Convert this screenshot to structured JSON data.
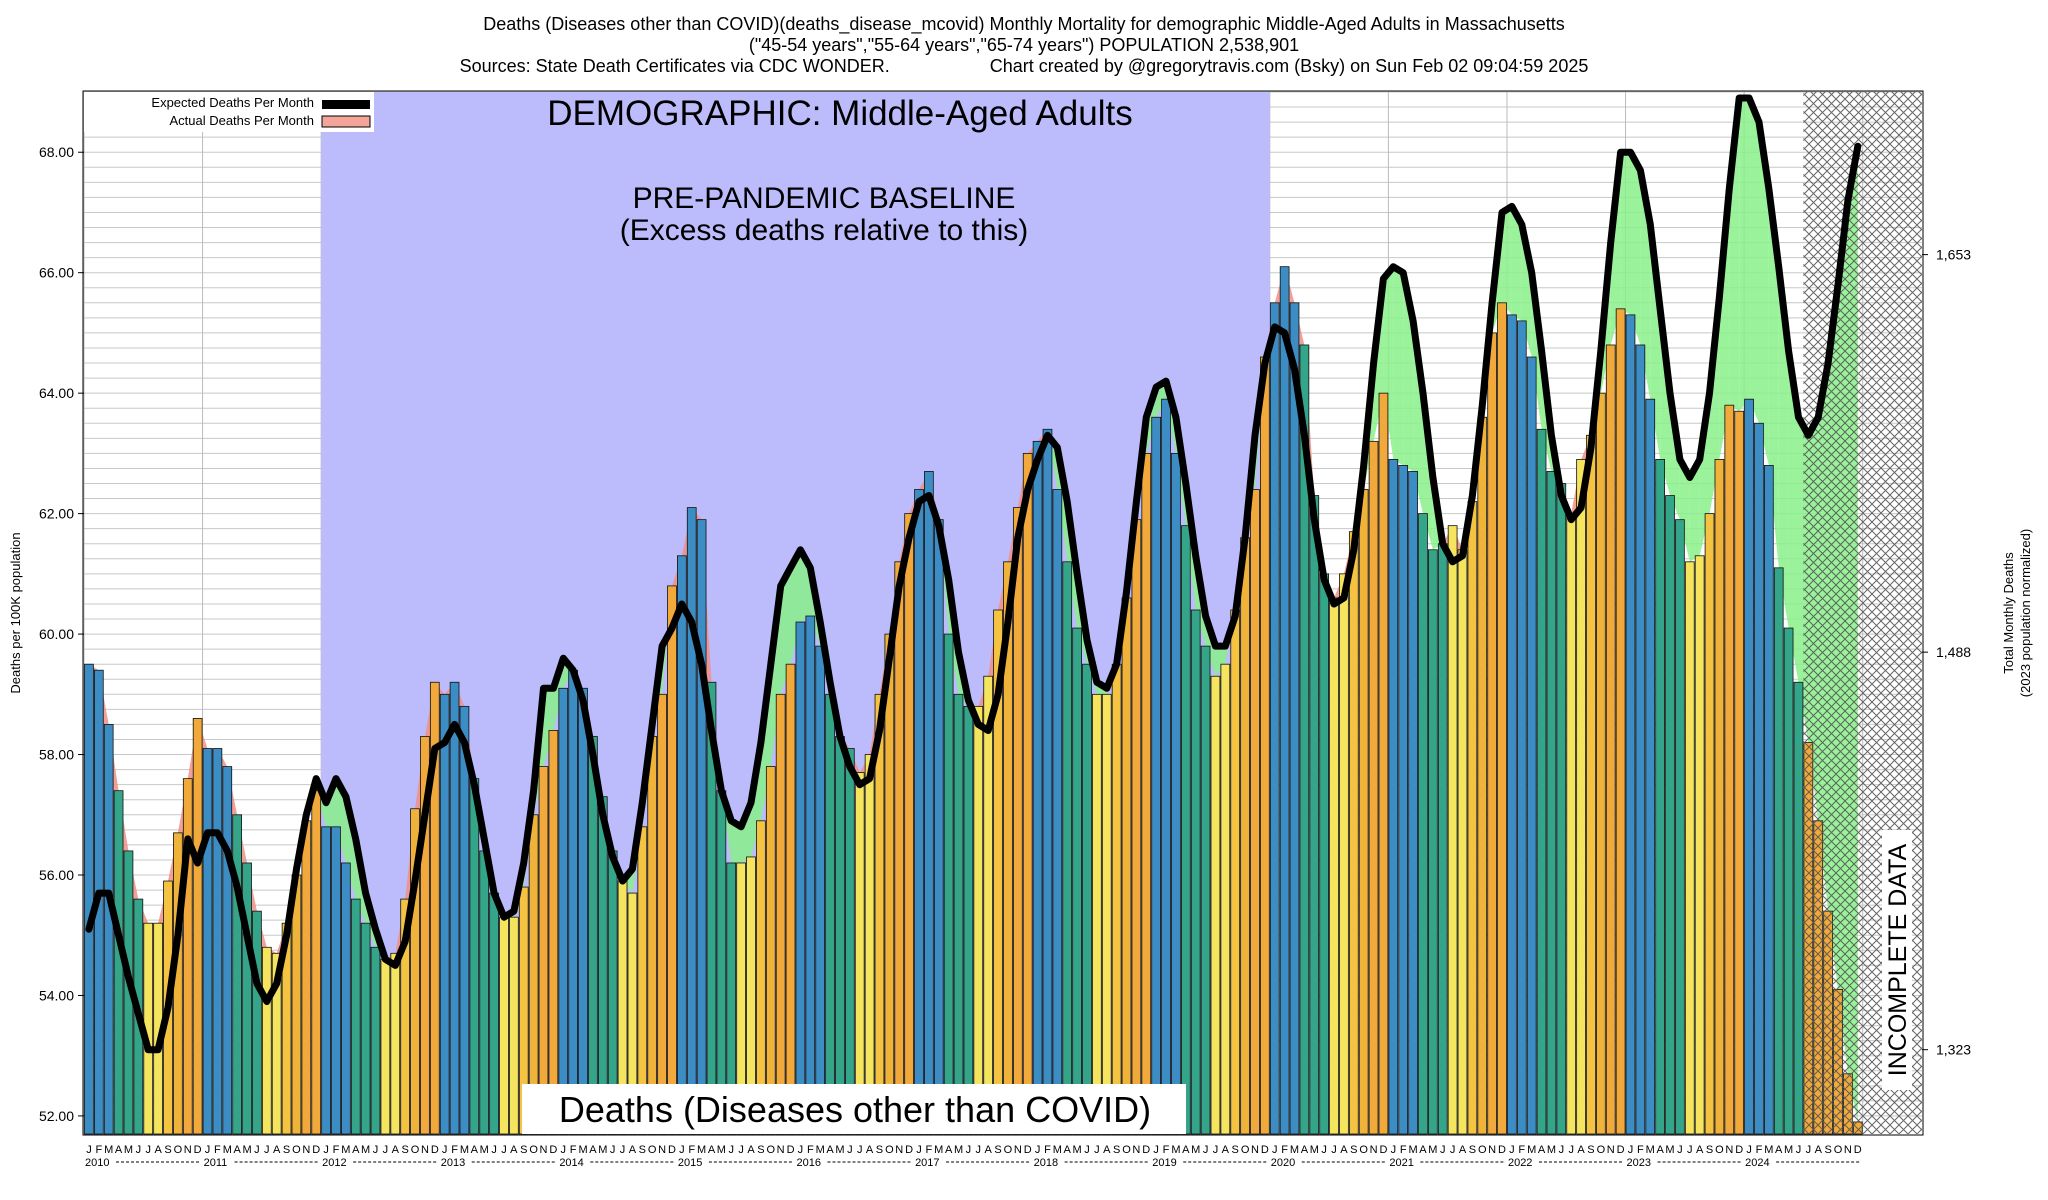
{
  "header": {
    "title": "Deaths (Diseases other than COVID)(deaths_disease_mcovid) Monthly Mortality for demographic Middle-Aged Adults in Massachusetts",
    "subtitle": "(\"45-54 years\",\"55-64 years\",\"65-74 years\") POPULATION 2,538,901",
    "sources": "Sources: State Death Certificates via CDC WONDER.",
    "credit": "Chart created by @gregorytravis.com (Bsky) on Sun Feb 02 09:04:59 2025"
  },
  "chart_data": {
    "type": "bar",
    "title": "DEMOGRAPHIC: Middle-Aged Adults",
    "bottom_label": "Deaths (Diseases other than COVID)",
    "ylabel": "Deaths per 100K population",
    "ylabel_right": [
      "Total Monthly Deaths",
      "(2023 population normalized)"
    ],
    "ylim": [
      51.7,
      69.0
    ],
    "yticks": [
      "52.00",
      "54.00",
      "56.00",
      "58.00",
      "60.00",
      "62.00",
      "64.00",
      "66.00",
      "68.00"
    ],
    "yticks_right": [
      {
        "label": "1,323",
        "value": 53.1
      },
      {
        "label": "1,488",
        "value": 59.7
      },
      {
        "label": "1,653",
        "value": 66.3
      }
    ],
    "month_letters": [
      "J",
      "F",
      "M",
      "A",
      "M",
      "J",
      "J",
      "A",
      "S",
      "O",
      "N",
      "D"
    ],
    "years": [
      "2010",
      "2011",
      "2012",
      "2013",
      "2014",
      "2015",
      "2016",
      "2017",
      "2018",
      "2019",
      "2020",
      "2021",
      "2022",
      "2023",
      "2024"
    ],
    "legend": [
      {
        "name": "Expected Deaths Per Month",
        "color": "#000000"
      },
      {
        "name": "Actual Deaths Per Month",
        "color": "#f4a59a"
      }
    ],
    "baseline": {
      "label_line1": "PRE-PANDEMIC BASELINE",
      "label_line2": "(Excess deaths relative to this)",
      "start_year": 2012,
      "end_year": 2019
    },
    "incomplete": {
      "label": "INCOMPLETE DATA",
      "start": "2024-07"
    },
    "actual": [
      59.5,
      59.4,
      58.5,
      57.4,
      56.4,
      55.6,
      55.2,
      55.2,
      55.9,
      56.7,
      57.6,
      58.6,
      58.1,
      58.1,
      57.8,
      57.0,
      56.2,
      55.4,
      54.8,
      54.7,
      55.2,
      56.0,
      56.9,
      57.4,
      56.8,
      56.8,
      56.2,
      55.6,
      55.2,
      54.8,
      54.6,
      54.7,
      55.6,
      57.1,
      58.3,
      59.2,
      59.0,
      59.2,
      58.8,
      57.6,
      56.4,
      55.7,
      55.3,
      55.3,
      55.8,
      57.0,
      57.8,
      58.4,
      59.1,
      59.4,
      59.1,
      58.3,
      57.3,
      56.4,
      55.9,
      55.7,
      56.8,
      58.3,
      59.0,
      60.8,
      61.3,
      62.1,
      61.9,
      59.2,
      57.4,
      56.2,
      56.2,
      56.3,
      56.9,
      57.8,
      59.0,
      59.5,
      60.2,
      60.3,
      59.8,
      59.0,
      58.3,
      58.1,
      57.7,
      58.0,
      59.0,
      60.0,
      61.2,
      62.0,
      62.4,
      62.7,
      61.9,
      60.0,
      59.0,
      58.8,
      58.8,
      59.3,
      60.4,
      61.2,
      62.1,
      63.0,
      63.2,
      63.4,
      62.4,
      61.2,
      60.1,
      59.5,
      59.0,
      59.0,
      59.5,
      60.6,
      61.9,
      63.0,
      63.6,
      63.9,
      63.0,
      61.8,
      60.4,
      59.8,
      59.3,
      59.5,
      60.4,
      61.6,
      62.4,
      64.6,
      65.5,
      66.1,
      65.5,
      64.8,
      62.3,
      61.0,
      60.6,
      61.0,
      61.7,
      62.4,
      63.2,
      64.0,
      62.9,
      62.8,
      62.7,
      62.0,
      61.4,
      61.5,
      61.8,
      61.4,
      62.2,
      63.6,
      65.0,
      65.5,
      65.3,
      65.2,
      64.6,
      63.4,
      62.7,
      62.5,
      62.0,
      62.9,
      63.3,
      64.0,
      64.8,
      65.4,
      65.3,
      64.8,
      63.9,
      62.9,
      62.3,
      61.9,
      61.2,
      61.3,
      62.0,
      62.9,
      63.8,
      63.7,
      63.9,
      63.5,
      62.8,
      61.1,
      60.1,
      59.2,
      58.2,
      56.9,
      55.4,
      54.1,
      52.7,
      51.9
    ],
    "expected": [
      55.1,
      55.7,
      55.7,
      55.0,
      54.3,
      53.7,
      53.1,
      53.1,
      53.8,
      55.0,
      56.6,
      56.2,
      56.7,
      56.7,
      56.4,
      55.8,
      55.0,
      54.2,
      53.9,
      54.2,
      55.0,
      56.1,
      57.0,
      57.6,
      57.2,
      57.6,
      57.3,
      56.6,
      55.7,
      55.1,
      54.6,
      54.5,
      54.9,
      55.9,
      57.0,
      58.1,
      58.2,
      58.5,
      58.2,
      57.5,
      56.6,
      55.7,
      55.3,
      55.4,
      56.2,
      57.4,
      59.1,
      59.1,
      59.6,
      59.4,
      58.9,
      58.0,
      57.0,
      56.3,
      55.9,
      56.1,
      57.2,
      58.5,
      59.8,
      60.1,
      60.5,
      60.2,
      59.5,
      58.4,
      57.4,
      56.9,
      56.8,
      57.2,
      58.2,
      59.5,
      60.8,
      61.1,
      61.4,
      61.1,
      60.2,
      59.2,
      58.3,
      57.8,
      57.5,
      57.6,
      58.4,
      59.6,
      60.8,
      61.6,
      62.2,
      62.3,
      61.8,
      60.9,
      59.7,
      58.9,
      58.5,
      58.4,
      59.0,
      60.2,
      61.6,
      62.4,
      62.9,
      63.3,
      63.1,
      62.2,
      61.0,
      59.9,
      59.2,
      59.1,
      59.5,
      60.7,
      62.2,
      63.6,
      64.1,
      64.2,
      63.6,
      62.5,
      61.3,
      60.3,
      59.8,
      59.8,
      60.3,
      61.6,
      63.3,
      64.5,
      65.1,
      65.0,
      64.4,
      63.3,
      61.9,
      60.9,
      60.5,
      60.6,
      61.4,
      62.8,
      64.5,
      65.9,
      66.1,
      66.0,
      65.2,
      64.0,
      62.6,
      61.5,
      61.2,
      61.3,
      62.3,
      63.8,
      65.5,
      67.0,
      67.1,
      66.8,
      66.0,
      64.7,
      63.3,
      62.3,
      61.9,
      62.1,
      63.1,
      64.7,
      66.5,
      68.0,
      68.0,
      67.7,
      66.8,
      65.4,
      64.0,
      62.9,
      62.6,
      62.9,
      64.0,
      65.6,
      67.4,
      68.9,
      68.9,
      68.5,
      67.4,
      66.1,
      64.7,
      63.6,
      63.3,
      63.6,
      64.5,
      65.8,
      67.2,
      68.1
    ]
  }
}
